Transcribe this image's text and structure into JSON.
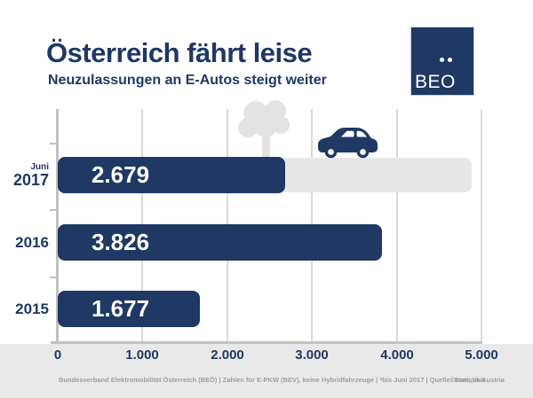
{
  "header": {
    "title": "Österreich fährt leise",
    "subtitle": "Neuzulassungen an E-Autos steigt weiter"
  },
  "logo": {
    "text": "BEO",
    "background_color": "#1F3864",
    "dots": "two white dots"
  },
  "chart_data": {
    "type": "bar",
    "orientation": "horizontal",
    "title": "Österreich fährt leise",
    "subtitle": "Neuzulassungen an E-Autos steigt weiter",
    "categories": [
      "Juni 2017",
      "2016",
      "2015"
    ],
    "category_prefix": [
      "Juni",
      "",
      ""
    ],
    "category_year": [
      "2017",
      "2016",
      "2015"
    ],
    "values": [
      2679,
      3826,
      1677
    ],
    "value_labels": [
      "2.679",
      "3.826",
      "1.677"
    ],
    "xlim": [
      0,
      5000
    ],
    "x_ticks": [
      "0",
      "1.000",
      "2.000",
      "3.000",
      "4.000",
      "5.000"
    ],
    "track_value": 4880,
    "grid": true,
    "legend": false,
    "bar_color": "#1F3864",
    "track_color": "#E7E7E7",
    "accent_color": "#1F3864"
  },
  "icons": {
    "tree": "deciduous-tree silhouette (light gray)",
    "car": "electric-car side silhouette (navy)"
  },
  "footer": {
    "source_line": "Bundesverband Elektromobilität Österreich (BEÖ) | Zahlen für E-PKW (BEV), keine Hybridfahrzeuge | *bis Juni 2017 | Quelle: Statistik Austria",
    "credit": "©com_unit"
  }
}
